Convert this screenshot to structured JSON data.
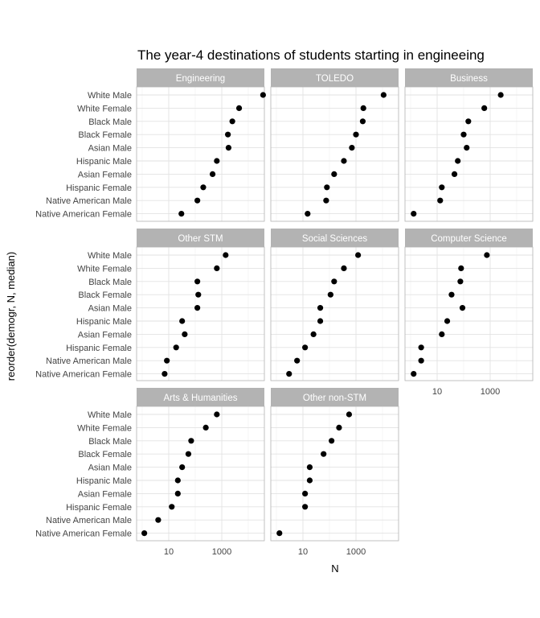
{
  "chart_data": {
    "type": "scatter",
    "title": "The year-4 destinations of students starting in engineeing",
    "xlabel": "N",
    "ylabel": "reorder(demogr, N, median)",
    "x_scale": "log10",
    "x_ticks": [
      "10",
      "1000"
    ],
    "categories": [
      "White Male",
      "White Female",
      "Black Male",
      "Black Female",
      "Asian Male",
      "Hispanic Male",
      "Asian Female",
      "Hispanic Female",
      "Native American Male",
      "Native American Female"
    ],
    "panels": [
      {
        "name": "Engineering",
        "values": [
          36000,
          4500,
          2500,
          1700,
          1800,
          650,
          450,
          200,
          120,
          30
        ]
      },
      {
        "name": "TOLEDO",
        "values": [
          11000,
          1900,
          1800,
          1000,
          700,
          350,
          150,
          80,
          75,
          15
        ]
      },
      {
        "name": "Business",
        "values": [
          2500,
          600,
          150,
          100,
          130,
          60,
          45,
          15,
          13,
          1.3
        ]
      },
      {
        "name": "Other STM",
        "values": [
          1400,
          650,
          120,
          130,
          120,
          32,
          40,
          19,
          8.5,
          7
        ]
      },
      {
        "name": "Social Sciences",
        "values": [
          1200,
          350,
          150,
          110,
          45,
          45,
          25,
          12,
          6,
          3
        ]
      },
      {
        "name": "Computer Science",
        "values": [
          750,
          80,
          75,
          35,
          90,
          24,
          15,
          2.5,
          2.5,
          1.3
        ]
      },
      {
        "name": "Arts & Humanities",
        "values": [
          650,
          250,
          70,
          55,
          32,
          22,
          22,
          13,
          4,
          1.2
        ]
      },
      {
        "name": "Other non-STM",
        "values": [
          550,
          230,
          120,
          60,
          18,
          18,
          12,
          12,
          null,
          1.3
        ]
      }
    ]
  }
}
